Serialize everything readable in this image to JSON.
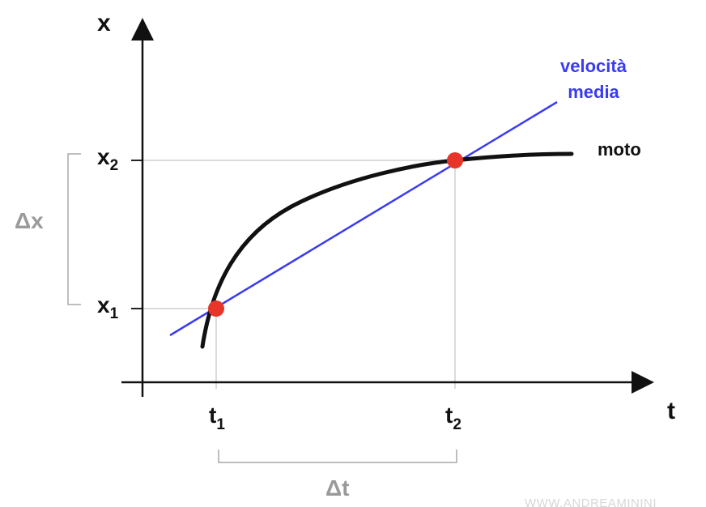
{
  "axes": {
    "x_label": "t",
    "y_label": "x"
  },
  "ticks": {
    "x1": {
      "base": "x",
      "sub": "1"
    },
    "x2": {
      "base": "x",
      "sub": "2"
    },
    "t1": {
      "base": "t",
      "sub": "1"
    },
    "t2": {
      "base": "t",
      "sub": "2"
    }
  },
  "brackets": {
    "delta_x": "Δx",
    "delta_t": "Δt"
  },
  "curves": {
    "motion": {
      "label": "moto",
      "color": "#111111"
    },
    "average_velocity": {
      "label_line1": "velocità",
      "label_line2": "media",
      "color": "#3b3bf0"
    }
  },
  "points_color": "#e8352a",
  "guide_color": "#cfcfcf",
  "watermark": "WWW.ANDREAMININI"
}
